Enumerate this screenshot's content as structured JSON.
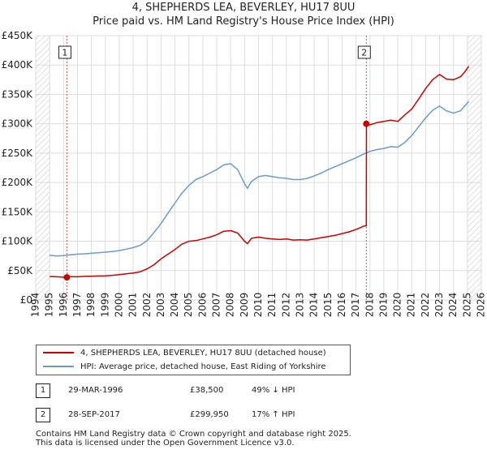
{
  "chart_data": {
    "type": "line",
    "title": "4, SHEPHERDS LEA, BEVERLEY, HU17 8UU",
    "subtitle": "Price paid vs. HM Land Registry's House Price Index (HPI)",
    "xlim": [
      1994,
      2026
    ],
    "ylim": [
      0,
      450000
    ],
    "x_ticks": [
      "1994",
      "1995",
      "1996",
      "1997",
      "1998",
      "1999",
      "2000",
      "2001",
      "2002",
      "2003",
      "2004",
      "2005",
      "2006",
      "2007",
      "2008",
      "2009",
      "2010",
      "2011",
      "2012",
      "2013",
      "2014",
      "2015",
      "2016",
      "2017",
      "2018",
      "2019",
      "2020",
      "2021",
      "2022",
      "2023",
      "2024",
      "2025",
      "2026"
    ],
    "y_ticks": [
      {
        "value": 0,
        "label": "£0"
      },
      {
        "value": 50000,
        "label": "£50K"
      },
      {
        "value": 100000,
        "label": "£100K"
      },
      {
        "value": 150000,
        "label": "£150K"
      },
      {
        "value": 200000,
        "label": "£200K"
      },
      {
        "value": 250000,
        "label": "£250K"
      },
      {
        "value": 300000,
        "label": "£300K"
      },
      {
        "value": 350000,
        "label": "£350K"
      },
      {
        "value": 400000,
        "label": "£400K"
      },
      {
        "value": 450000,
        "label": "£450K"
      }
    ],
    "series": [
      {
        "name": "4, SHEPHERDS LEA, BEVERLEY, HU17 8UU (detached house)",
        "color": "#cc0000",
        "points": [
          [
            1995.0,
            40000
          ],
          [
            1995.5,
            39500
          ],
          [
            1996.0,
            38800
          ],
          [
            1996.24,
            38500
          ],
          [
            1996.5,
            39800
          ],
          [
            1997.0,
            39500
          ],
          [
            1997.5,
            40200
          ],
          [
            1998.0,
            40500
          ],
          [
            1998.5,
            40800
          ],
          [
            1999.0,
            41000
          ],
          [
            1999.5,
            42000
          ],
          [
            2000.0,
            43000
          ],
          [
            2000.5,
            44500
          ],
          [
            2001.0,
            46000
          ],
          [
            2001.5,
            48000
          ],
          [
            2002.0,
            53000
          ],
          [
            2002.5,
            60000
          ],
          [
            2003.0,
            70000
          ],
          [
            2003.5,
            78000
          ],
          [
            2004.0,
            86000
          ],
          [
            2004.5,
            95000
          ],
          [
            2005.0,
            100000
          ],
          [
            2005.5,
            101000
          ],
          [
            2006.0,
            104000
          ],
          [
            2006.5,
            107000
          ],
          [
            2007.0,
            111000
          ],
          [
            2007.5,
            117000
          ],
          [
            2008.0,
            118000
          ],
          [
            2008.5,
            114000
          ],
          [
            2009.0,
            100000
          ],
          [
            2009.2,
            96000
          ],
          [
            2009.5,
            105000
          ],
          [
            2010.0,
            107000
          ],
          [
            2010.5,
            105000
          ],
          [
            2011.0,
            104000
          ],
          [
            2011.5,
            103000
          ],
          [
            2012.0,
            104000
          ],
          [
            2012.5,
            102000
          ],
          [
            2013.0,
            102500
          ],
          [
            2013.5,
            102000
          ],
          [
            2014.0,
            104000
          ],
          [
            2014.5,
            106000
          ],
          [
            2015.0,
            108000
          ],
          [
            2015.5,
            110000
          ],
          [
            2016.0,
            113000
          ],
          [
            2016.5,
            116000
          ],
          [
            2017.0,
            120000
          ],
          [
            2017.6,
            126000
          ],
          [
            2017.74,
            126500
          ],
          [
            2017.75,
            299950
          ],
          [
            2018.0,
            298000
          ],
          [
            2018.5,
            302000
          ],
          [
            2019.0,
            304000
          ],
          [
            2019.5,
            306000
          ],
          [
            2020.0,
            304000
          ],
          [
            2020.5,
            315000
          ],
          [
            2021.0,
            325000
          ],
          [
            2021.5,
            342000
          ],
          [
            2022.0,
            360000
          ],
          [
            2022.5,
            375000
          ],
          [
            2023.0,
            384000
          ],
          [
            2023.5,
            376000
          ],
          [
            2024.0,
            375000
          ],
          [
            2024.5,
            380000
          ],
          [
            2024.8,
            388000
          ],
          [
            2025.1,
            398000
          ]
        ]
      },
      {
        "name": "HPI: Average price, detached house, East Riding of Yorkshire",
        "color": "#6a9ad0",
        "points": [
          [
            1995.0,
            76000
          ],
          [
            1995.5,
            75000
          ],
          [
            1996.0,
            75500
          ],
          [
            1996.5,
            77000
          ],
          [
            1997.0,
            78000
          ],
          [
            1997.5,
            78500
          ],
          [
            1998.0,
            79500
          ],
          [
            1998.5,
            80500
          ],
          [
            1999.0,
            81500
          ],
          [
            1999.5,
            82500
          ],
          [
            2000.0,
            84000
          ],
          [
            2000.5,
            86500
          ],
          [
            2001.0,
            89000
          ],
          [
            2001.5,
            93000
          ],
          [
            2002.0,
            101000
          ],
          [
            2002.5,
            115000
          ],
          [
            2003.0,
            130000
          ],
          [
            2003.5,
            148000
          ],
          [
            2004.0,
            165000
          ],
          [
            2004.5,
            182000
          ],
          [
            2005.0,
            195000
          ],
          [
            2005.5,
            205000
          ],
          [
            2006.0,
            210000
          ],
          [
            2006.5,
            216000
          ],
          [
            2007.0,
            222000
          ],
          [
            2007.5,
            230000
          ],
          [
            2008.0,
            232000
          ],
          [
            2008.5,
            222000
          ],
          [
            2009.0,
            198000
          ],
          [
            2009.2,
            190000
          ],
          [
            2009.5,
            202000
          ],
          [
            2010.0,
            210000
          ],
          [
            2010.5,
            212000
          ],
          [
            2011.0,
            210000
          ],
          [
            2011.5,
            208000
          ],
          [
            2012.0,
            207000
          ],
          [
            2012.5,
            205000
          ],
          [
            2013.0,
            205000
          ],
          [
            2013.5,
            207000
          ],
          [
            2014.0,
            211000
          ],
          [
            2014.5,
            216000
          ],
          [
            2015.0,
            222000
          ],
          [
            2015.5,
            227000
          ],
          [
            2016.0,
            232000
          ],
          [
            2016.5,
            237000
          ],
          [
            2017.0,
            242000
          ],
          [
            2017.5,
            248000
          ],
          [
            2018.0,
            253000
          ],
          [
            2018.5,
            256000
          ],
          [
            2019.0,
            258000
          ],
          [
            2019.5,
            261000
          ],
          [
            2020.0,
            260000
          ],
          [
            2020.5,
            268000
          ],
          [
            2021.0,
            280000
          ],
          [
            2021.5,
            295000
          ],
          [
            2022.0,
            310000
          ],
          [
            2022.5,
            323000
          ],
          [
            2023.0,
            330000
          ],
          [
            2023.5,
            322000
          ],
          [
            2024.0,
            318000
          ],
          [
            2024.5,
            322000
          ],
          [
            2024.8,
            330000
          ],
          [
            2025.1,
            338000
          ]
        ]
      }
    ],
    "transactions": [
      {
        "id": "1",
        "x": 1996.24,
        "price": 38500,
        "date": "29-MAR-1996",
        "price_label": "£38,500",
        "hpi": "49% ↓ HPI"
      },
      {
        "id": "2",
        "x": 2017.74,
        "price": 299950,
        "date": "28-SEP-2017",
        "price_label": "£299,950",
        "hpi": "17% ↑ HPI"
      }
    ],
    "hatch_left": [
      1994,
      1995
    ],
    "hatch_right": [
      2025.0,
      2026
    ],
    "grid": true
  },
  "legend": {
    "property_label": "4, SHEPHERDS LEA, BEVERLEY, HU17 8UU (detached house)",
    "hpi_label": "HPI: Average price, detached house, East Riding of Yorkshire"
  },
  "table": [
    {
      "id": "1",
      "date": "29-MAR-1996",
      "price": "£38,500",
      "hpi": "49% ↓ HPI"
    },
    {
      "id": "2",
      "date": "28-SEP-2017",
      "price": "£299,950",
      "hpi": "17% ↑ HPI"
    }
  ],
  "footer": {
    "line1": "Contains HM Land Registry data © Crown copyright and database right 2025.",
    "line2": "This data is licensed under the Open Government Licence v3.0."
  }
}
